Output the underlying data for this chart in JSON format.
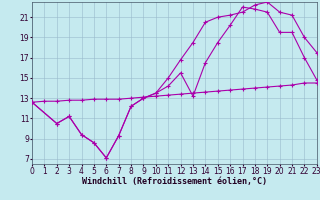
{
  "background_color": "#c5eaef",
  "line_color": "#aa00aa",
  "grid_color": "#99bbcc",
  "xlabel": "Windchill (Refroidissement éolien,°C)",
  "xlabel_fontsize": 6,
  "tick_fontsize": 5.5,
  "xlim": [
    0,
    23
  ],
  "ylim": [
    6.5,
    22.5
  ],
  "yticks": [
    7,
    9,
    11,
    13,
    15,
    17,
    19,
    21
  ],
  "xticks": [
    0,
    1,
    2,
    3,
    4,
    5,
    6,
    7,
    8,
    9,
    10,
    11,
    12,
    13,
    14,
    15,
    16,
    17,
    18,
    19,
    20,
    21,
    22,
    23
  ],
  "series1_x": [
    0,
    1,
    2,
    3,
    4,
    5,
    6,
    7,
    8,
    9,
    10,
    11,
    12,
    13,
    14,
    15,
    16,
    17,
    18,
    19,
    20,
    21,
    22,
    23
  ],
  "series1_y": [
    12.6,
    12.7,
    12.7,
    12.8,
    12.8,
    12.9,
    12.9,
    12.9,
    13.0,
    13.1,
    13.2,
    13.3,
    13.4,
    13.5,
    13.6,
    13.7,
    13.8,
    13.9,
    14.0,
    14.1,
    14.2,
    14.3,
    14.5,
    14.5
  ],
  "series2_x": [
    0,
    2,
    3,
    4,
    5,
    6,
    7,
    8,
    9,
    10,
    11,
    12,
    13,
    14,
    15,
    16,
    17,
    18,
    19,
    20,
    21,
    22,
    23
  ],
  "series2_y": [
    12.6,
    10.5,
    11.2,
    9.4,
    8.6,
    7.1,
    9.3,
    12.2,
    13.0,
    13.5,
    14.2,
    15.5,
    13.2,
    16.5,
    18.5,
    20.2,
    22.0,
    21.8,
    21.5,
    19.5,
    19.5,
    17.0,
    14.8
  ],
  "series3_x": [
    0,
    2,
    3,
    4,
    5,
    6,
    7,
    8,
    9,
    10,
    11,
    12,
    13,
    14,
    15,
    16,
    17,
    18,
    19,
    20,
    21,
    22,
    23
  ],
  "series3_y": [
    12.6,
    10.5,
    11.2,
    9.4,
    8.6,
    7.1,
    9.3,
    12.2,
    13.0,
    13.5,
    15.0,
    16.8,
    18.5,
    20.5,
    21.0,
    21.2,
    21.5,
    22.2,
    22.5,
    21.5,
    21.2,
    19.0,
    17.5
  ]
}
